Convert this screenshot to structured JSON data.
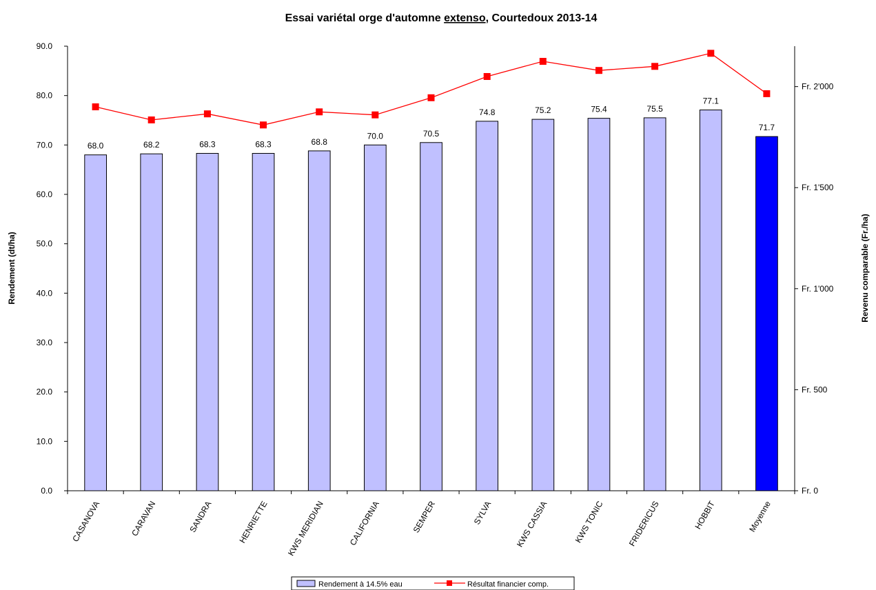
{
  "chart_data": {
    "type": "bar",
    "title": {
      "prefix": "Essai variétal orge d'automne ",
      "underlined": "extenso",
      "suffix": ", Courtedoux 2013-14"
    },
    "ylabel": "Rendement (dt/ha)",
    "y2label": "Revenu comparable (Fr./ha)",
    "ylim": [
      0,
      90
    ],
    "y2lim": [
      0,
      2200
    ],
    "yticks": [
      "0.0",
      "10.0",
      "20.0",
      "30.0",
      "40.0",
      "50.0",
      "60.0",
      "70.0",
      "80.0",
      "90.0"
    ],
    "y2ticks": [
      {
        "value": 0,
        "label": "Fr. 0"
      },
      {
        "value": 500,
        "label": "Fr. 500"
      },
      {
        "value": 1000,
        "label": "Fr. 1'000"
      },
      {
        "value": 1500,
        "label": "Fr. 1'500"
      },
      {
        "value": 2000,
        "label": "Fr. 2'000"
      }
    ],
    "categories": [
      "CASANOVA",
      "CARAVAN",
      "SANDRA",
      "HENRIETTE",
      "KWS MERIDIAN",
      "CALIFORNIA",
      "SEMPER",
      "SYLVA",
      "KWS CASSIA",
      "KWS TONIC",
      "FRIDERICUS",
      "HOBBIT",
      "Moyenne"
    ],
    "series": [
      {
        "name": "Rendement à 14.5% eau",
        "type": "bar",
        "axis": "left",
        "color": "#C0C0FF",
        "highlight_color": "#0000FF",
        "highlight_index": 12,
        "values": [
          68.0,
          68.2,
          68.3,
          68.3,
          68.8,
          70.0,
          70.5,
          74.8,
          75.2,
          75.4,
          75.5,
          77.1,
          71.7
        ],
        "labels": [
          "68.0",
          "68.2",
          "68.3",
          "68.3",
          "68.8",
          "70.0",
          "70.5",
          "74.8",
          "75.2",
          "75.4",
          "75.5",
          "77.1",
          "71.7"
        ]
      },
      {
        "name": "Résultat financier comp.",
        "type": "line",
        "axis": "right",
        "color": "#FF0000",
        "values": [
          1900,
          1835,
          1865,
          1810,
          1875,
          1860,
          1945,
          2050,
          2125,
          2080,
          2100,
          2165,
          1965
        ]
      }
    ],
    "legend_position": "bottom"
  }
}
